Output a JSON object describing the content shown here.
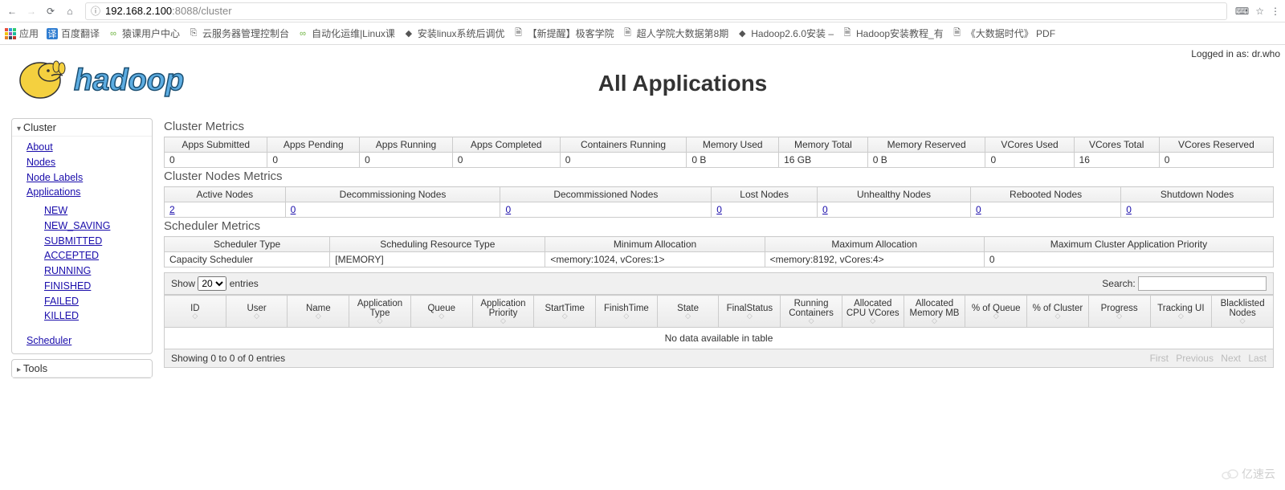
{
  "browser": {
    "url_host": "192.168.2.100",
    "url_port": ":8088",
    "url_path": "/cluster"
  },
  "bookmarks": {
    "apps": "应用",
    "items": [
      "百度翻译",
      "猿课用户中心",
      "云服务器管理控制台",
      "自动化运维|Linux课",
      "安装linux系统后调优",
      "【新提醒】极客学院",
      "超人学院大数据第8期",
      "Hadoop2.6.0安装 –",
      "Hadoop安装教程_有",
      "《大数据时代》 PDF"
    ]
  },
  "login_prefix": "Logged in as: ",
  "login_user": "dr.who",
  "page_title": "All Applications",
  "sidebar": {
    "cluster": "Cluster",
    "tools": "Tools",
    "links": {
      "about": "About",
      "nodes": "Nodes",
      "node_labels": "Node Labels",
      "applications": "Applications",
      "scheduler": "Scheduler"
    },
    "app_states": [
      "NEW",
      "NEW_SAVING",
      "SUBMITTED",
      "ACCEPTED",
      "RUNNING",
      "FINISHED",
      "FAILED",
      "KILLED"
    ]
  },
  "cluster_metrics": {
    "title": "Cluster Metrics",
    "headers": [
      "Apps Submitted",
      "Apps Pending",
      "Apps Running",
      "Apps Completed",
      "Containers Running",
      "Memory Used",
      "Memory Total",
      "Memory Reserved",
      "VCores Used",
      "VCores Total",
      "VCores Reserved"
    ],
    "values": [
      "0",
      "0",
      "0",
      "0",
      "0",
      "0 B",
      "16 GB",
      "0 B",
      "0",
      "16",
      "0"
    ]
  },
  "nodes_metrics": {
    "title": "Cluster Nodes Metrics",
    "headers": [
      "Active Nodes",
      "Decommissioning Nodes",
      "Decommissioned Nodes",
      "Lost Nodes",
      "Unhealthy Nodes",
      "Rebooted Nodes",
      "Shutdown Nodes"
    ],
    "values": [
      "2",
      "0",
      "0",
      "0",
      "0",
      "0",
      "0"
    ]
  },
  "scheduler_metrics": {
    "title": "Scheduler Metrics",
    "headers": [
      "Scheduler Type",
      "Scheduling Resource Type",
      "Minimum Allocation",
      "Maximum Allocation",
      "Maximum Cluster Application Priority"
    ],
    "values": [
      "Capacity Scheduler",
      "[MEMORY]",
      "<memory:1024, vCores:1>",
      "<memory:8192, vCores:4>",
      "0"
    ]
  },
  "table_controls": {
    "show": "Show",
    "entries": "entries",
    "page_size": "20",
    "search_label": "Search:"
  },
  "apps_table": {
    "headers": [
      "ID",
      "User",
      "Name",
      "Application Type",
      "Queue",
      "Application Priority",
      "StartTime",
      "FinishTime",
      "State",
      "FinalStatus",
      "Running Containers",
      "Allocated CPU VCores",
      "Allocated Memory MB",
      "% of Queue",
      "% of Cluster",
      "Progress",
      "Tracking UI",
      "Blacklisted Nodes"
    ],
    "empty": "No data available in table"
  },
  "footer": {
    "showing": "Showing 0 to 0 of 0 entries",
    "first": "First",
    "prev": "Previous",
    "next": "Next",
    "last": "Last"
  },
  "watermark": "亿速云"
}
